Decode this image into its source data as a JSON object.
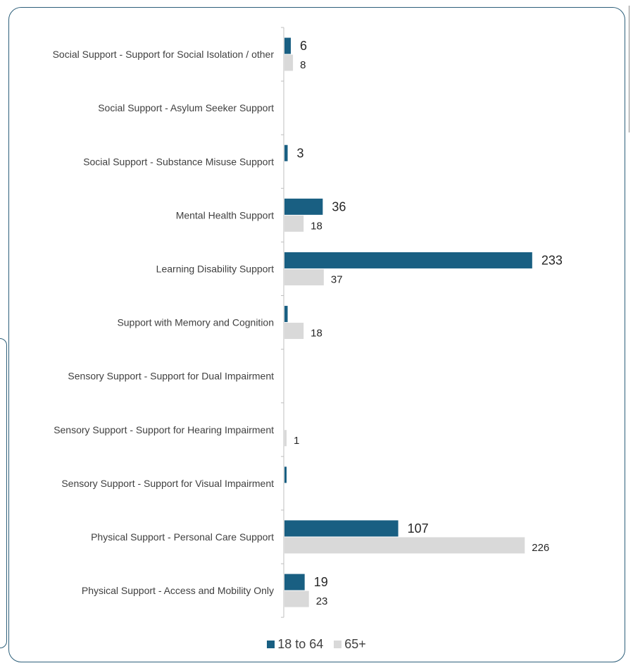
{
  "chart_data": {
    "type": "bar",
    "orientation": "horizontal",
    "categories": [
      "Social Support - Support for Social Isolation / other",
      "Social Support - Asylum Seeker Support",
      "Social Support - Substance Misuse Support",
      "Mental Health Support",
      "Learning Disability Support",
      "Support with Memory and Cognition",
      "Sensory Support - Support for Dual Impairment",
      "Sensory Support - Support for Hearing Impairment",
      "Sensory Support - Support for Visual Impairment",
      "Physical Support - Personal Care Support",
      "Physical Support - Access and Mobility Only"
    ],
    "series": [
      {
        "name": "18 to 64",
        "color": "#195f82",
        "values": [
          6,
          0,
          3,
          36,
          233,
          3,
          0,
          0,
          1,
          107,
          19
        ],
        "labels": [
          "6",
          "",
          "3",
          "36",
          "233",
          "",
          "",
          "",
          "",
          "107",
          "19"
        ]
      },
      {
        "name": "65+",
        "color": "#d9d9d9",
        "values": [
          8,
          0,
          0,
          18,
          37,
          18,
          0,
          1,
          0,
          226,
          23
        ],
        "labels": [
          "8",
          "",
          "",
          "18",
          "37",
          "18",
          "",
          "1",
          "",
          "226",
          "23"
        ]
      }
    ],
    "legend_position": "bottom",
    "grid": false
  }
}
